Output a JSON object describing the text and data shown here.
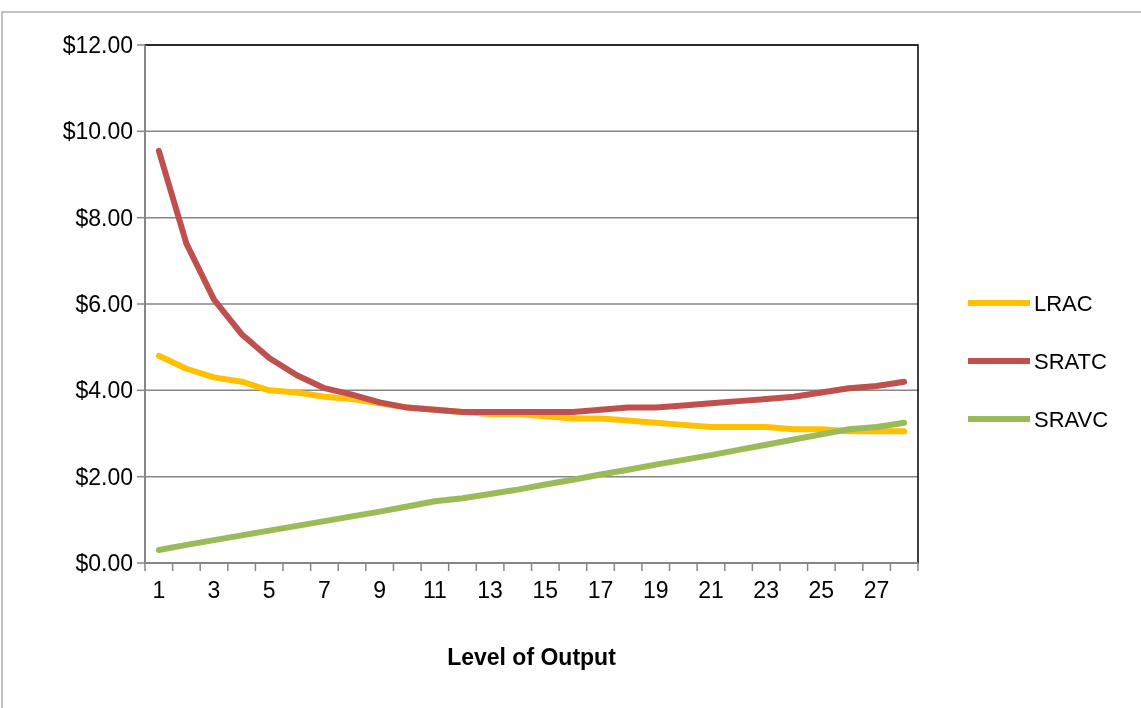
{
  "chart_data": {
    "type": "line",
    "xlabel": "Level of Output",
    "x": [
      1,
      2,
      3,
      4,
      5,
      6,
      7,
      8,
      9,
      10,
      11,
      12,
      13,
      14,
      15,
      16,
      17,
      18,
      19,
      20,
      21,
      22,
      23,
      24,
      25,
      26,
      27,
      28
    ],
    "xlim": [
      0.5,
      28.5
    ],
    "xticks": [
      1,
      3,
      5,
      7,
      9,
      11,
      13,
      15,
      17,
      19,
      21,
      23,
      25,
      27,
      {
        "value": 0.5,
        "label": null
      },
      {
        "value": 1.5,
        "label": null
      },
      {
        "value": 2.5,
        "label": null
      },
      {
        "value": 3.5,
        "label": null
      },
      {
        "value": 4.5,
        "label": null
      },
      {
        "value": 5.5,
        "label": null
      },
      {
        "value": 6.5,
        "label": null
      },
      {
        "value": 7.5,
        "label": null
      },
      {
        "value": 8.5,
        "label": null
      },
      {
        "value": 9.5,
        "label": null
      },
      {
        "value": 10.5,
        "label": null
      },
      {
        "value": 11.5,
        "label": null
      },
      {
        "value": 12.5,
        "label": null
      },
      {
        "value": 13.5,
        "label": null
      },
      {
        "value": 14.5,
        "label": null
      },
      {
        "value": 15.5,
        "label": null
      },
      {
        "value": 16.5,
        "label": null
      },
      {
        "value": 17.5,
        "label": null
      },
      {
        "value": 18.5,
        "label": null
      },
      {
        "value": 19.5,
        "label": null
      },
      {
        "value": 20.5,
        "label": null
      },
      {
        "value": 21.5,
        "label": null
      },
      {
        "value": 22.5,
        "label": null
      },
      {
        "value": 23.5,
        "label": null
      },
      {
        "value": 24.5,
        "label": null
      },
      {
        "value": 25.5,
        "label": null
      },
      {
        "value": 26.5,
        "label": null
      },
      {
        "value": 27.5,
        "label": null
      },
      {
        "value": 28.5,
        "label": null
      }
    ],
    "series": [
      {
        "name": "LRAC",
        "color": "#ffc000",
        "values": [
          4.8,
          4.5,
          4.3,
          4.2,
          4.0,
          3.95,
          3.85,
          3.8,
          3.7,
          3.6,
          3.55,
          3.5,
          3.45,
          3.45,
          3.4,
          3.35,
          3.35,
          3.3,
          3.25,
          3.2,
          3.15,
          3.15,
          3.15,
          3.1,
          3.1,
          3.05,
          3.05,
          3.05
        ]
      },
      {
        "name": "SRATC",
        "color": "#c0504d",
        "values": [
          9.55,
          7.4,
          6.1,
          5.3,
          4.75,
          4.35,
          4.05,
          3.9,
          3.72,
          3.6,
          3.55,
          3.5,
          3.5,
          3.5,
          3.5,
          3.5,
          3.55,
          3.6,
          3.6,
          3.65,
          3.7,
          3.75,
          3.8,
          3.85,
          3.95,
          4.05,
          4.1,
          4.2
        ]
      },
      {
        "name": "SRAVC",
        "color": "#9bbb59",
        "values": [
          0.3,
          0.42,
          0.53,
          0.64,
          0.75,
          0.86,
          0.97,
          1.08,
          1.19,
          1.31,
          1.43,
          1.5,
          1.6,
          1.7,
          1.82,
          1.93,
          2.05,
          2.16,
          2.28,
          2.39,
          2.5,
          2.62,
          2.74,
          2.86,
          2.98,
          3.1,
          3.15,
          3.25
        ]
      }
    ],
    "ylim": [
      0,
      12
    ],
    "yticks": [
      {
        "value": 0,
        "label": "$0.00"
      },
      {
        "value": 2,
        "label": "$2.00"
      },
      {
        "value": 4,
        "label": "$4.00"
      },
      {
        "value": 6,
        "label": "$6.00"
      },
      {
        "value": 8,
        "label": "$8.00"
      },
      {
        "value": 10,
        "label": "$10.00"
      },
      {
        "value": 12,
        "label": "$12.00"
      }
    ],
    "grid": "y",
    "legend": "right",
    "marker": "none",
    "line_style": "solid"
  }
}
